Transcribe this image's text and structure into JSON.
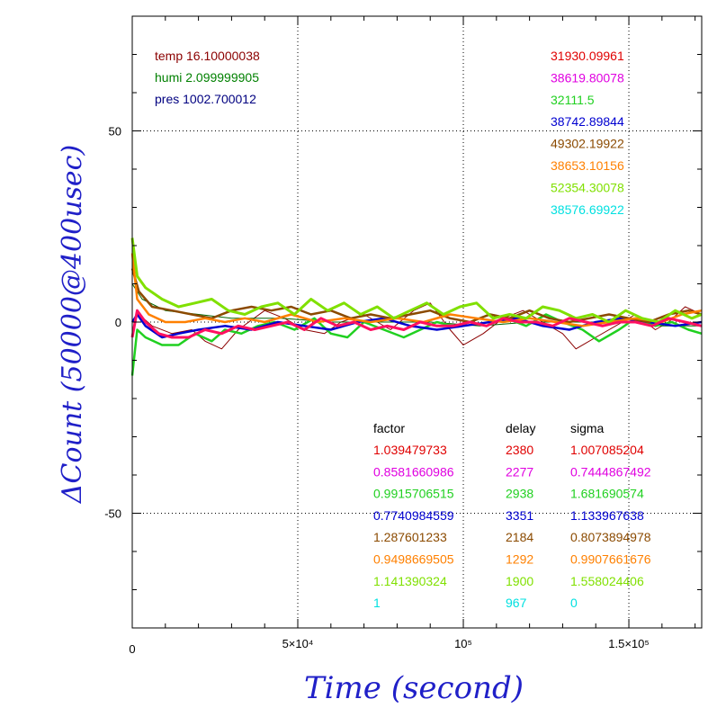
{
  "chart_data": {
    "type": "line",
    "xlabel": "Time (second)",
    "ylabel": "ΔCount (50000@400usec)",
    "xlim": [
      0,
      172000
    ],
    "ylim": [
      -80,
      80
    ],
    "grid": true,
    "x_ticks": [
      {
        "value": 0,
        "label": "0"
      },
      {
        "value": 50000,
        "label": "5×10⁴"
      },
      {
        "value": 100000,
        "label": "10⁵"
      },
      {
        "value": 150000,
        "label": "1.5×10⁵"
      }
    ],
    "y_ticks": [
      {
        "value": 50,
        "label": "50"
      },
      {
        "value": 0,
        "label": "0"
      },
      {
        "value": -50,
        "label": "-50"
      }
    ],
    "env_readings": [
      {
        "text": "temp 16.10000038",
        "color": "#8b0000"
      },
      {
        "text": "humi 2.099999905",
        "color": "#008000"
      },
      {
        "text": "pres 1002.700012",
        "color": "#000080"
      }
    ],
    "legend_header": {
      "factor": "factor",
      "delay": "delay",
      "sigma": "sigma"
    },
    "series": [
      {
        "value": "31930.09961",
        "factor": "1.039479733",
        "delay": "2380",
        "sigma": "1.007085204",
        "color": "#e00000"
      },
      {
        "value": "38619.80078",
        "factor": "0.8581660986",
        "delay": "2277",
        "sigma": "0.7444867492",
        "color": "#e000e0"
      },
      {
        "value": "32111.5",
        "factor": "0.9915706515",
        "delay": "2938",
        "sigma": "1.681690574",
        "color": "#20d020"
      },
      {
        "value": "38742.89844",
        "factor": "0.7740984559",
        "delay": "3351",
        "sigma": "1.133967638",
        "color": "#0000d0"
      },
      {
        "value": "49302.19922",
        "factor": "1.287601233",
        "delay": "2184",
        "sigma": "0.8073894978",
        "color": "#8b4a00"
      },
      {
        "value": "38653.10156",
        "factor": "0.9498669505",
        "delay": "1292",
        "sigma": "0.9907661676",
        "color": "#ff8000"
      },
      {
        "value": "52354.30078",
        "factor": "1.141390324",
        "delay": "1900",
        "sigma": "1.558024406",
        "color": "#80e000"
      },
      {
        "value": "38576.69922",
        "factor": "1",
        "delay": "967",
        "sigma": "0",
        "color": "#00e0e0"
      }
    ],
    "curves": [
      {
        "color": "#8b0000",
        "width": 1,
        "x": [
          0,
          2000,
          6000,
          12000,
          18000,
          22000,
          27000,
          32000,
          40000,
          46000,
          52000,
          58000,
          63000,
          70000,
          78000,
          85000,
          90000,
          96000,
          100000,
          106000,
          112000,
          118000,
          124000,
          130000,
          134000,
          140000,
          146000,
          152000,
          158000,
          162000,
          167000,
          172000
        ],
        "y": [
          0,
          2,
          -1,
          -3,
          -2,
          -5,
          -7,
          -2,
          3,
          1,
          -2,
          -3,
          0,
          2,
          -2,
          3,
          5,
          -2,
          -6,
          -3,
          1,
          3,
          0,
          -3,
          -7,
          -4,
          -1,
          2,
          -2,
          0,
          4,
          2
        ]
      },
      {
        "color": "#006400",
        "width": 1,
        "x": [
          0,
          3000,
          10000,
          20000,
          30000,
          45000,
          60000,
          75000,
          90000,
          105000,
          120000,
          135000,
          150000,
          160000,
          172000
        ],
        "y": [
          10,
          6,
          3,
          2,
          1,
          1,
          0,
          0,
          0,
          -1,
          0,
          0,
          0,
          -1,
          -1
        ]
      },
      {
        "color": "#20d020",
        "width": 2.5,
        "x": [
          0,
          1500,
          4000,
          9000,
          14000,
          19000,
          24000,
          28000,
          33000,
          38000,
          43000,
          49000,
          55000,
          60000,
          65000,
          70000,
          76000,
          82000,
          87000,
          92000,
          97000,
          102000,
          108000,
          113000,
          119000,
          125000,
          130000,
          136000,
          141000,
          147000,
          152000,
          158000,
          163000,
          168000,
          172000
        ],
        "y": [
          -14,
          -2,
          -4,
          -6,
          -6,
          -3,
          -5,
          -2,
          -3,
          -1,
          0,
          -2,
          1,
          -3,
          -4,
          0,
          -2,
          -4,
          -2,
          0,
          -1,
          0,
          2,
          1,
          -1,
          2,
          0,
          -2,
          -5,
          -2,
          1,
          -1,
          0,
          -2,
          -3
        ]
      },
      {
        "color": "#0000d0",
        "width": 2.5,
        "x": [
          0,
          1500,
          4000,
          9000,
          14000,
          20000,
          28000,
          36000,
          44000,
          52000,
          60000,
          68000,
          76000,
          84000,
          92000,
          100000,
          108000,
          116000,
          124000,
          132000,
          140000,
          148000,
          156000,
          164000,
          172000
        ],
        "y": [
          0,
          2,
          -1,
          -4,
          -3,
          -2,
          -1,
          -2,
          0,
          -1,
          -2,
          0,
          1,
          -1,
          -2,
          -1,
          0,
          1,
          -1,
          -2,
          0,
          1,
          0,
          -1,
          0
        ]
      },
      {
        "color": "#8b4a00",
        "width": 2.5,
        "x": [
          0,
          2000,
          6000,
          12000,
          18000,
          24000,
          30000,
          36000,
          42000,
          48000,
          54000,
          60000,
          66000,
          72000,
          78000,
          84000,
          90000,
          96000,
          102000,
          108000,
          114000,
          120000,
          126000,
          132000,
          138000,
          144000,
          150000,
          156000,
          162000,
          168000,
          172000
        ],
        "y": [
          14,
          8,
          4,
          3,
          2,
          1,
          3,
          4,
          3,
          4,
          2,
          3,
          1,
          2,
          1,
          2,
          3,
          1,
          0,
          2,
          1,
          3,
          1,
          0,
          1,
          2,
          1,
          0,
          2,
          3,
          2
        ]
      },
      {
        "color": "#ff8000",
        "width": 2.5,
        "x": [
          0,
          1500,
          5000,
          10000,
          16000,
          22000,
          28000,
          34000,
          40000,
          48000,
          56000,
          64000,
          72000,
          80000,
          88000,
          96000,
          104000,
          112000,
          120000,
          128000,
          136000,
          144000,
          152000,
          160000,
          166000,
          172000
        ],
        "y": [
          18,
          6,
          2,
          0,
          0,
          1,
          0,
          1,
          0,
          2,
          0,
          1,
          0,
          1,
          0,
          2,
          1,
          0,
          1,
          0,
          -1,
          0,
          1,
          0,
          2,
          3
        ]
      },
      {
        "color": "#80e000",
        "width": 3,
        "x": [
          0,
          1500,
          4000,
          9000,
          14000,
          19000,
          24000,
          29000,
          34000,
          39000,
          44000,
          49000,
          54000,
          59000,
          64000,
          69000,
          74000,
          79000,
          84000,
          89000,
          94000,
          99000,
          104000,
          109000,
          114000,
          119000,
          124000,
          129000,
          134000,
          139000,
          144000,
          149000,
          154000,
          159000,
          164000,
          169000,
          172000
        ],
        "y": [
          22,
          12,
          9,
          6,
          4,
          5,
          6,
          3,
          2,
          4,
          5,
          2,
          6,
          3,
          5,
          2,
          4,
          1,
          3,
          5,
          2,
          4,
          5,
          1,
          2,
          1,
          4,
          3,
          1,
          2,
          0,
          3,
          1,
          0,
          3,
          1,
          2
        ]
      },
      {
        "color": "#ff1060",
        "width": 3,
        "x": [
          0,
          1500,
          4000,
          8000,
          12000,
          17000,
          22000,
          27000,
          32000,
          37000,
          42000,
          47000,
          52000,
          57000,
          62000,
          67000,
          72000,
          77000,
          82000,
          87000,
          92000,
          97000,
          102000,
          107000,
          112000,
          117000,
          122000,
          127000,
          132000,
          137000,
          142000,
          147000,
          152000,
          157000,
          162000,
          167000,
          172000
        ],
        "y": [
          -4,
          3,
          0,
          -3,
          -4,
          -4,
          -2,
          -3,
          -1,
          -2,
          -1,
          0,
          -2,
          1,
          -1,
          0,
          -2,
          -1,
          -2,
          0,
          -1,
          -1,
          0,
          -1,
          1,
          0,
          0,
          -1,
          1,
          0,
          -1,
          0,
          0,
          -1,
          1,
          0,
          -1
        ]
      }
    ]
  }
}
